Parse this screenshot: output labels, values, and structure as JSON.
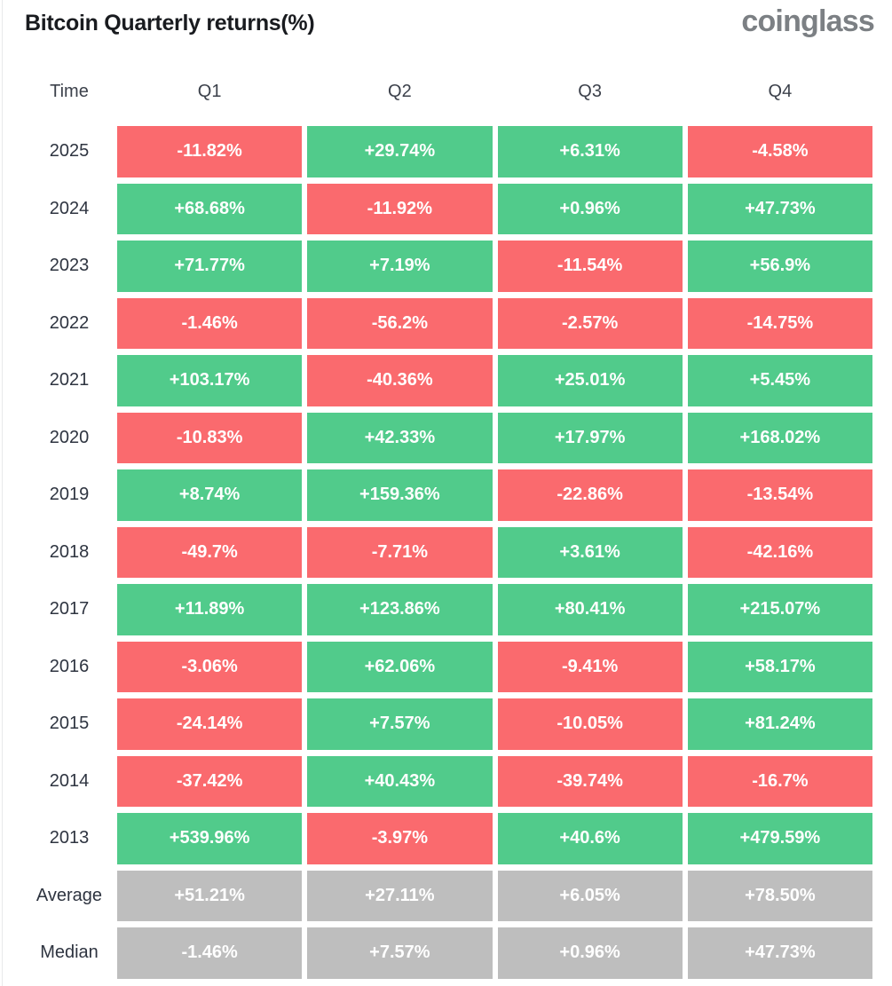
{
  "header": {
    "title": "Bitcoin Quarterly returns(%)",
    "logo_text": "coinglass"
  },
  "table": {
    "columns": [
      "Time",
      "Q1",
      "Q2",
      "Q3",
      "Q4"
    ],
    "rows": [
      {
        "label": "2025",
        "kind": "year",
        "values": [
          "-11.82%",
          "+29.74%",
          "+6.31%",
          "-4.58%"
        ]
      },
      {
        "label": "2024",
        "kind": "year",
        "values": [
          "+68.68%",
          "-11.92%",
          "+0.96%",
          "+47.73%"
        ]
      },
      {
        "label": "2023",
        "kind": "year",
        "values": [
          "+71.77%",
          "+7.19%",
          "-11.54%",
          "+56.9%"
        ]
      },
      {
        "label": "2022",
        "kind": "year",
        "values": [
          "-1.46%",
          "-56.2%",
          "-2.57%",
          "-14.75%"
        ]
      },
      {
        "label": "2021",
        "kind": "year",
        "values": [
          "+103.17%",
          "-40.36%",
          "+25.01%",
          "+5.45%"
        ]
      },
      {
        "label": "2020",
        "kind": "year",
        "values": [
          "-10.83%",
          "+42.33%",
          "+17.97%",
          "+168.02%"
        ]
      },
      {
        "label": "2019",
        "kind": "year",
        "values": [
          "+8.74%",
          "+159.36%",
          "-22.86%",
          "-13.54%"
        ]
      },
      {
        "label": "2018",
        "kind": "year",
        "values": [
          "-49.7%",
          "-7.71%",
          "+3.61%",
          "-42.16%"
        ]
      },
      {
        "label": "2017",
        "kind": "year",
        "values": [
          "+11.89%",
          "+123.86%",
          "+80.41%",
          "+215.07%"
        ]
      },
      {
        "label": "2016",
        "kind": "year",
        "values": [
          "-3.06%",
          "+62.06%",
          "-9.41%",
          "+58.17%"
        ]
      },
      {
        "label": "2015",
        "kind": "year",
        "values": [
          "-24.14%",
          "+7.57%",
          "-10.05%",
          "+81.24%"
        ]
      },
      {
        "label": "2014",
        "kind": "year",
        "values": [
          "-37.42%",
          "+40.43%",
          "-39.74%",
          "-16.7%"
        ]
      },
      {
        "label": "2013",
        "kind": "year",
        "values": [
          "+539.96%",
          "-3.97%",
          "+40.6%",
          "+479.59%"
        ]
      },
      {
        "label": "Average",
        "kind": "summary",
        "values": [
          "+51.21%",
          "+27.11%",
          "+6.05%",
          "+78.50%"
        ]
      },
      {
        "label": "Median",
        "kind": "summary",
        "values": [
          "-1.46%",
          "+7.57%",
          "+0.96%",
          "+47.73%"
        ]
      }
    ]
  },
  "colors": {
    "positive": "#51CB8B",
    "negative": "#FA6A6E",
    "summary": "#BEBEBE",
    "title": "#191B1F",
    "label": "#2E3440",
    "logo": "#7C8084",
    "border": "#E8E9EB"
  },
  "chart_data": {
    "type": "heatmap",
    "title": "Bitcoin Quarterly returns(%)",
    "unit": "%",
    "columns": [
      "Q1",
      "Q2",
      "Q3",
      "Q4"
    ],
    "rows": [
      "2025",
      "2024",
      "2023",
      "2022",
      "2021",
      "2020",
      "2019",
      "2018",
      "2017",
      "2016",
      "2015",
      "2014",
      "2013",
      "Average",
      "Median"
    ],
    "values": [
      [
        -11.82,
        29.74,
        6.31,
        -4.58
      ],
      [
        68.68,
        -11.92,
        0.96,
        47.73
      ],
      [
        71.77,
        7.19,
        -11.54,
        56.9
      ],
      [
        -1.46,
        -56.2,
        -2.57,
        -14.75
      ],
      [
        103.17,
        -40.36,
        25.01,
        5.45
      ],
      [
        -10.83,
        42.33,
        17.97,
        168.02
      ],
      [
        8.74,
        159.36,
        -22.86,
        -13.54
      ],
      [
        -49.7,
        -7.71,
        3.61,
        -42.16
      ],
      [
        11.89,
        123.86,
        80.41,
        215.07
      ],
      [
        -3.06,
        62.06,
        -9.41,
        58.17
      ],
      [
        -24.14,
        7.57,
        -10.05,
        81.24
      ],
      [
        -37.42,
        40.43,
        -39.74,
        -16.7
      ],
      [
        539.96,
        -3.97,
        40.6,
        479.59
      ],
      [
        51.21,
        27.11,
        6.05,
        78.5
      ],
      [
        -1.46,
        7.57,
        0.96,
        47.73
      ]
    ],
    "color_rule": "positive values green, negative values red, Average/Median summary rows gray",
    "legend": "none",
    "grid": "off"
  }
}
